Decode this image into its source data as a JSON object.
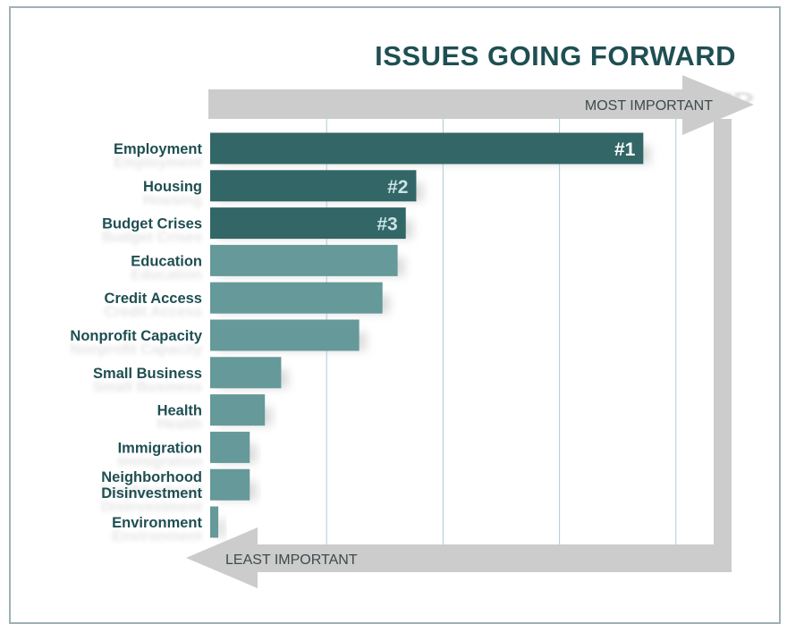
{
  "colors": {
    "top_bar": "#336666",
    "other_bar": "#669999",
    "label": "#1f4f52",
    "title": "#1f4f52",
    "grid": "#a8cdd6",
    "arrow": "#cccccc",
    "arrow_text": "#3e4a4c"
  },
  "chart_data": {
    "type": "bar",
    "orientation": "horizontal",
    "title": "ISSUES GOING FORWARD",
    "categories": [
      "Employment",
      "Housing",
      "Budget Crises",
      "Education",
      "Credit Access",
      "Nonprofit Capacity",
      "Small Business",
      "Health",
      "Immigration",
      "Neighborhood Disinvestment",
      "Environment"
    ],
    "category_lines": [
      [
        "Employment"
      ],
      [
        "Housing"
      ],
      [
        "Budget Crises"
      ],
      [
        "Education"
      ],
      [
        "Credit Access"
      ],
      [
        "Nonprofit Capacity"
      ],
      [
        "Small Business"
      ],
      [
        "Health"
      ],
      [
        "Immigration"
      ],
      [
        "Neighborhood",
        "Disinvestment"
      ],
      [
        "Environment"
      ]
    ],
    "values": [
      3.72,
      1.77,
      1.68,
      1.61,
      1.48,
      1.28,
      0.61,
      0.47,
      0.34,
      0.34,
      0.07
    ],
    "rank_labels": [
      "#1",
      "#2",
      "#3",
      "",
      "",
      "",
      "",
      "",
      "",
      "",
      ""
    ],
    "xlim": [
      0,
      4.5
    ],
    "grid": true,
    "x_axis_top_label": "MOST IMPORTANT",
    "x_axis_bottom_label": "LEAST IMPORTANT"
  }
}
